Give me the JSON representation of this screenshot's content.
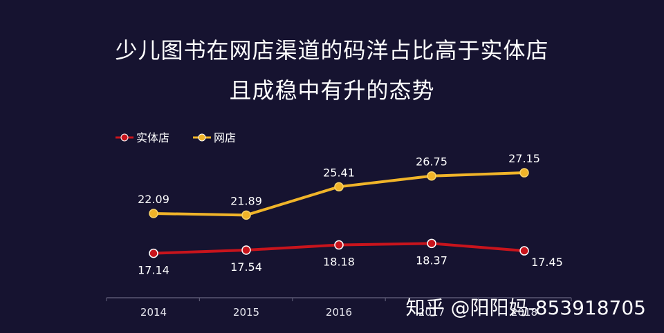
{
  "title": {
    "line1": "少儿图书在网店渠道的码洋占比高于实体店",
    "line2": "且成稳中有升的态势"
  },
  "watermark": "知乎 @阳阳妈-853918705",
  "chart_data": {
    "type": "line",
    "x": [
      "2014",
      "2015",
      "2016",
      "2017",
      "2018"
    ],
    "series": [
      {
        "name": "实体店",
        "values": [
          17.14,
          17.54,
          18.18,
          18.37,
          17.45
        ],
        "color": "#c8141c",
        "label_position": "below"
      },
      {
        "name": "网店",
        "values": [
          22.09,
          21.89,
          25.41,
          26.75,
          27.15
        ],
        "color": "#f0b429",
        "label_position": "above"
      }
    ],
    "legend": "top-left",
    "grid": false,
    "colors": {
      "background": "#161330",
      "axis": "#5a5872",
      "text": "#ffffff",
      "tick_text": "#e8e8f0"
    }
  }
}
